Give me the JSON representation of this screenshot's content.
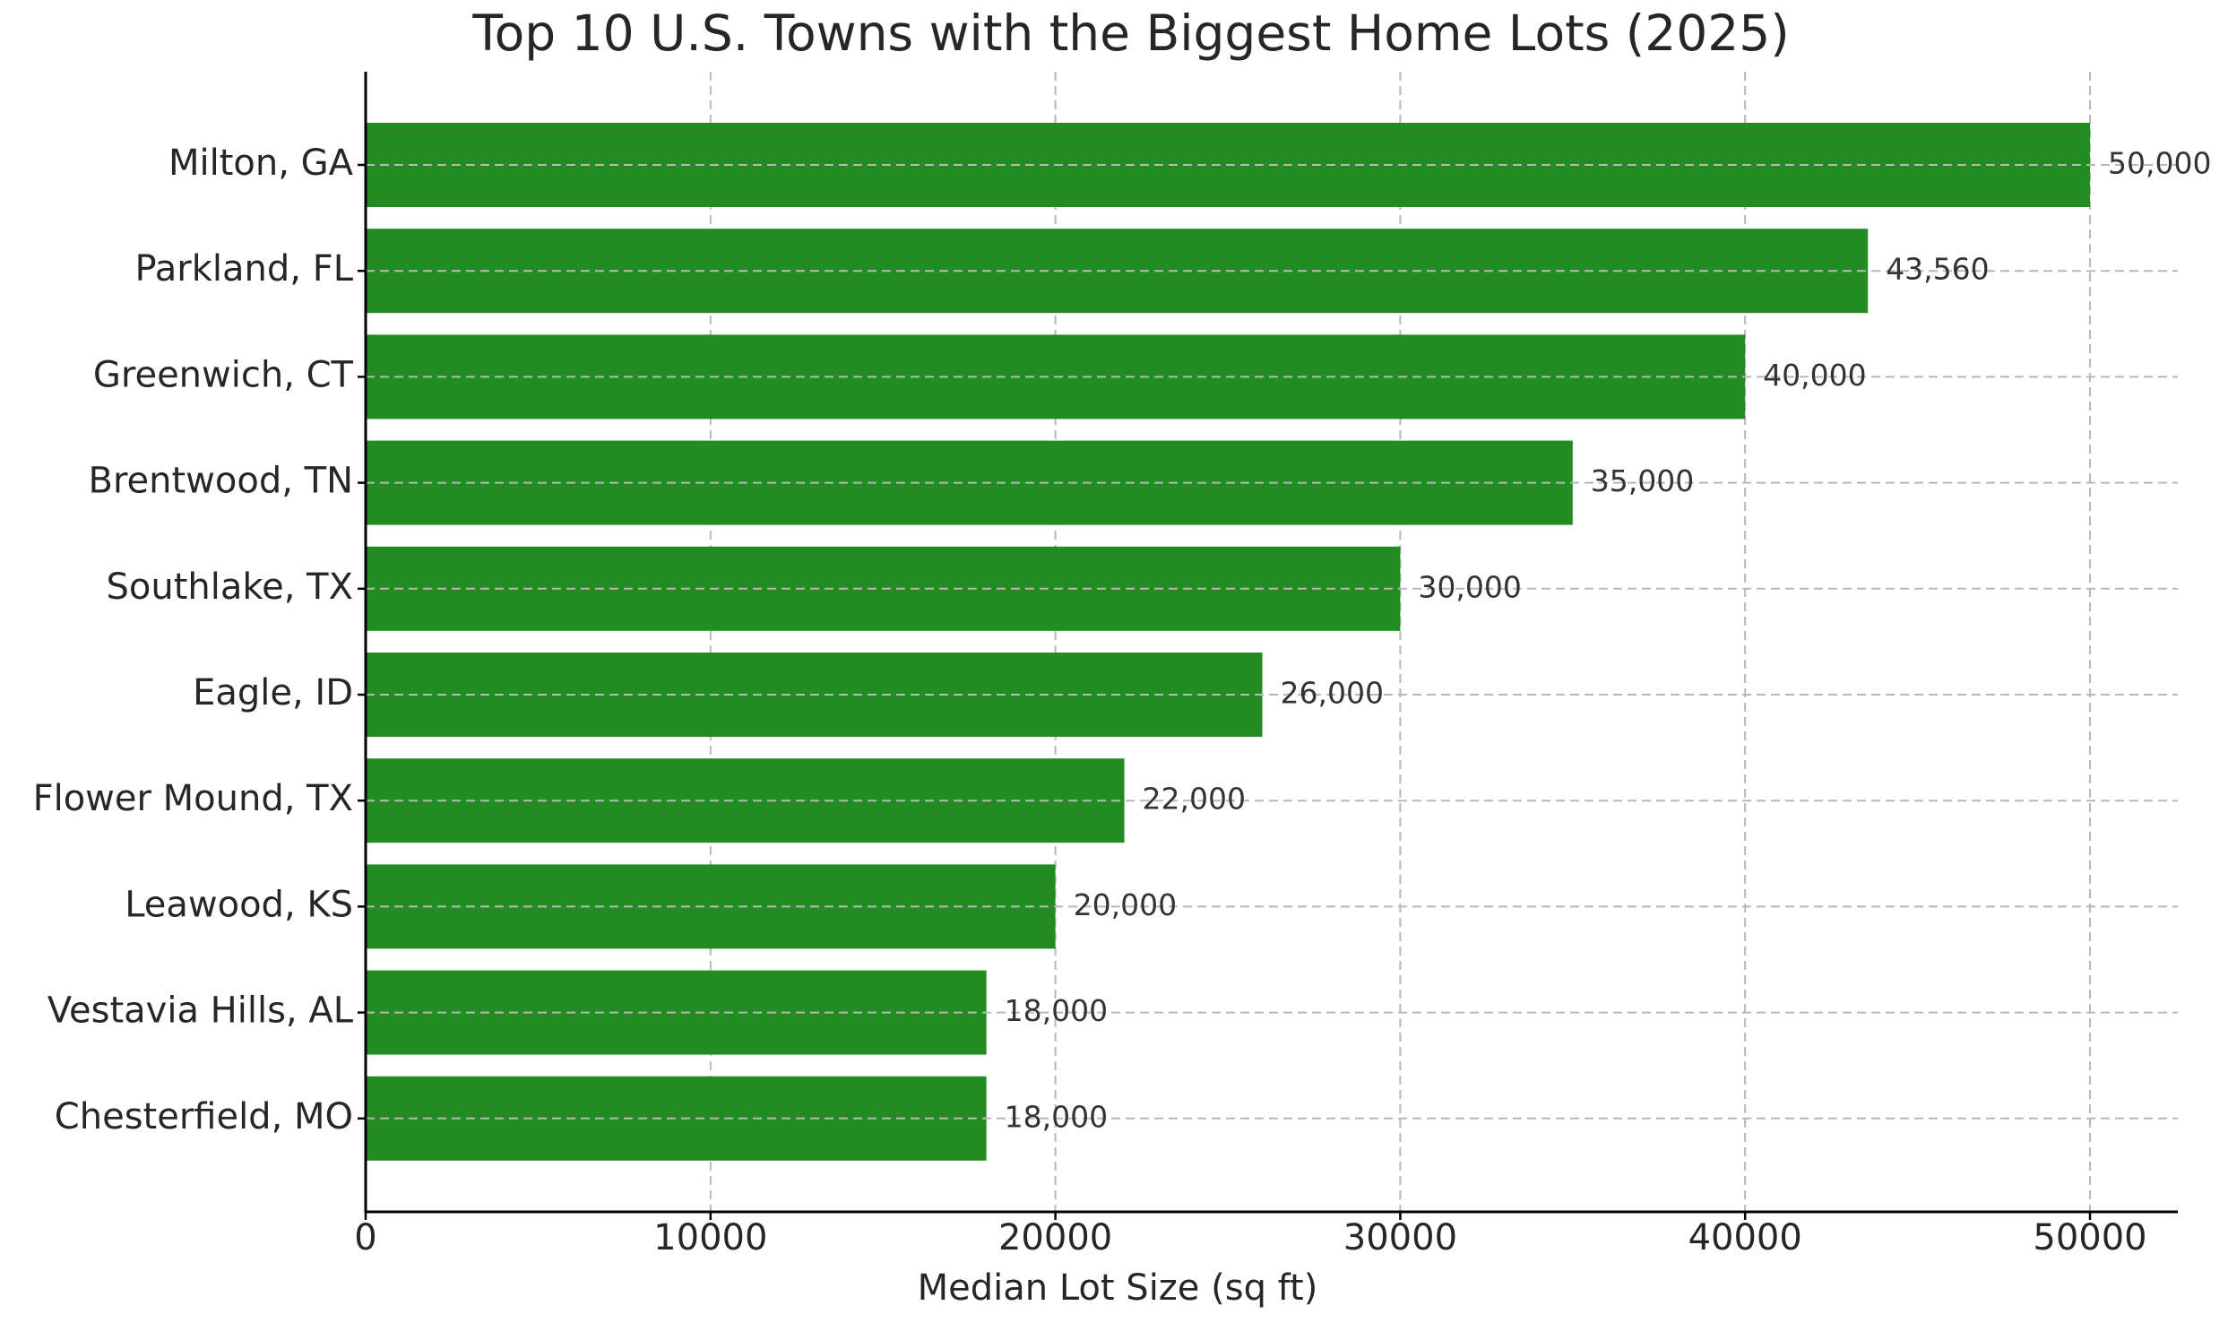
{
  "chart_data": {
    "type": "bar",
    "orientation": "horizontal",
    "title": "Top 10 U.S. Towns with the Biggest Home Lots (2025)",
    "xlabel": "Median Lot Size (sq ft)",
    "ylabel": "",
    "categories": [
      "Milton, GA",
      "Parkland, FL",
      "Greenwich, CT",
      "Brentwood, TN",
      "Southlake, TX",
      "Eagle, ID",
      "Flower Mound, TX",
      "Leawood, KS",
      "Vestavia Hills, AL",
      "Chesterfield, MO"
    ],
    "values": [
      50000,
      43560,
      40000,
      35000,
      30000,
      26000,
      22000,
      20000,
      18000,
      18000
    ],
    "value_labels": [
      "50,000",
      "43,560",
      "40,000",
      "35,000",
      "30,000",
      "26,000",
      "22,000",
      "20,000",
      "18,000",
      "18,000"
    ],
    "xlim": [
      0,
      52500
    ],
    "xticks": [
      0,
      10000,
      20000,
      30000,
      40000,
      50000
    ],
    "xtick_labels": [
      "0",
      "10000",
      "20000",
      "30000",
      "40000",
      "50000"
    ],
    "grid": true,
    "legend": "none",
    "colors": {
      "bar": "#228B22",
      "text": "#262626",
      "grid": "#b8b8b8",
      "axis": "#000000"
    }
  }
}
